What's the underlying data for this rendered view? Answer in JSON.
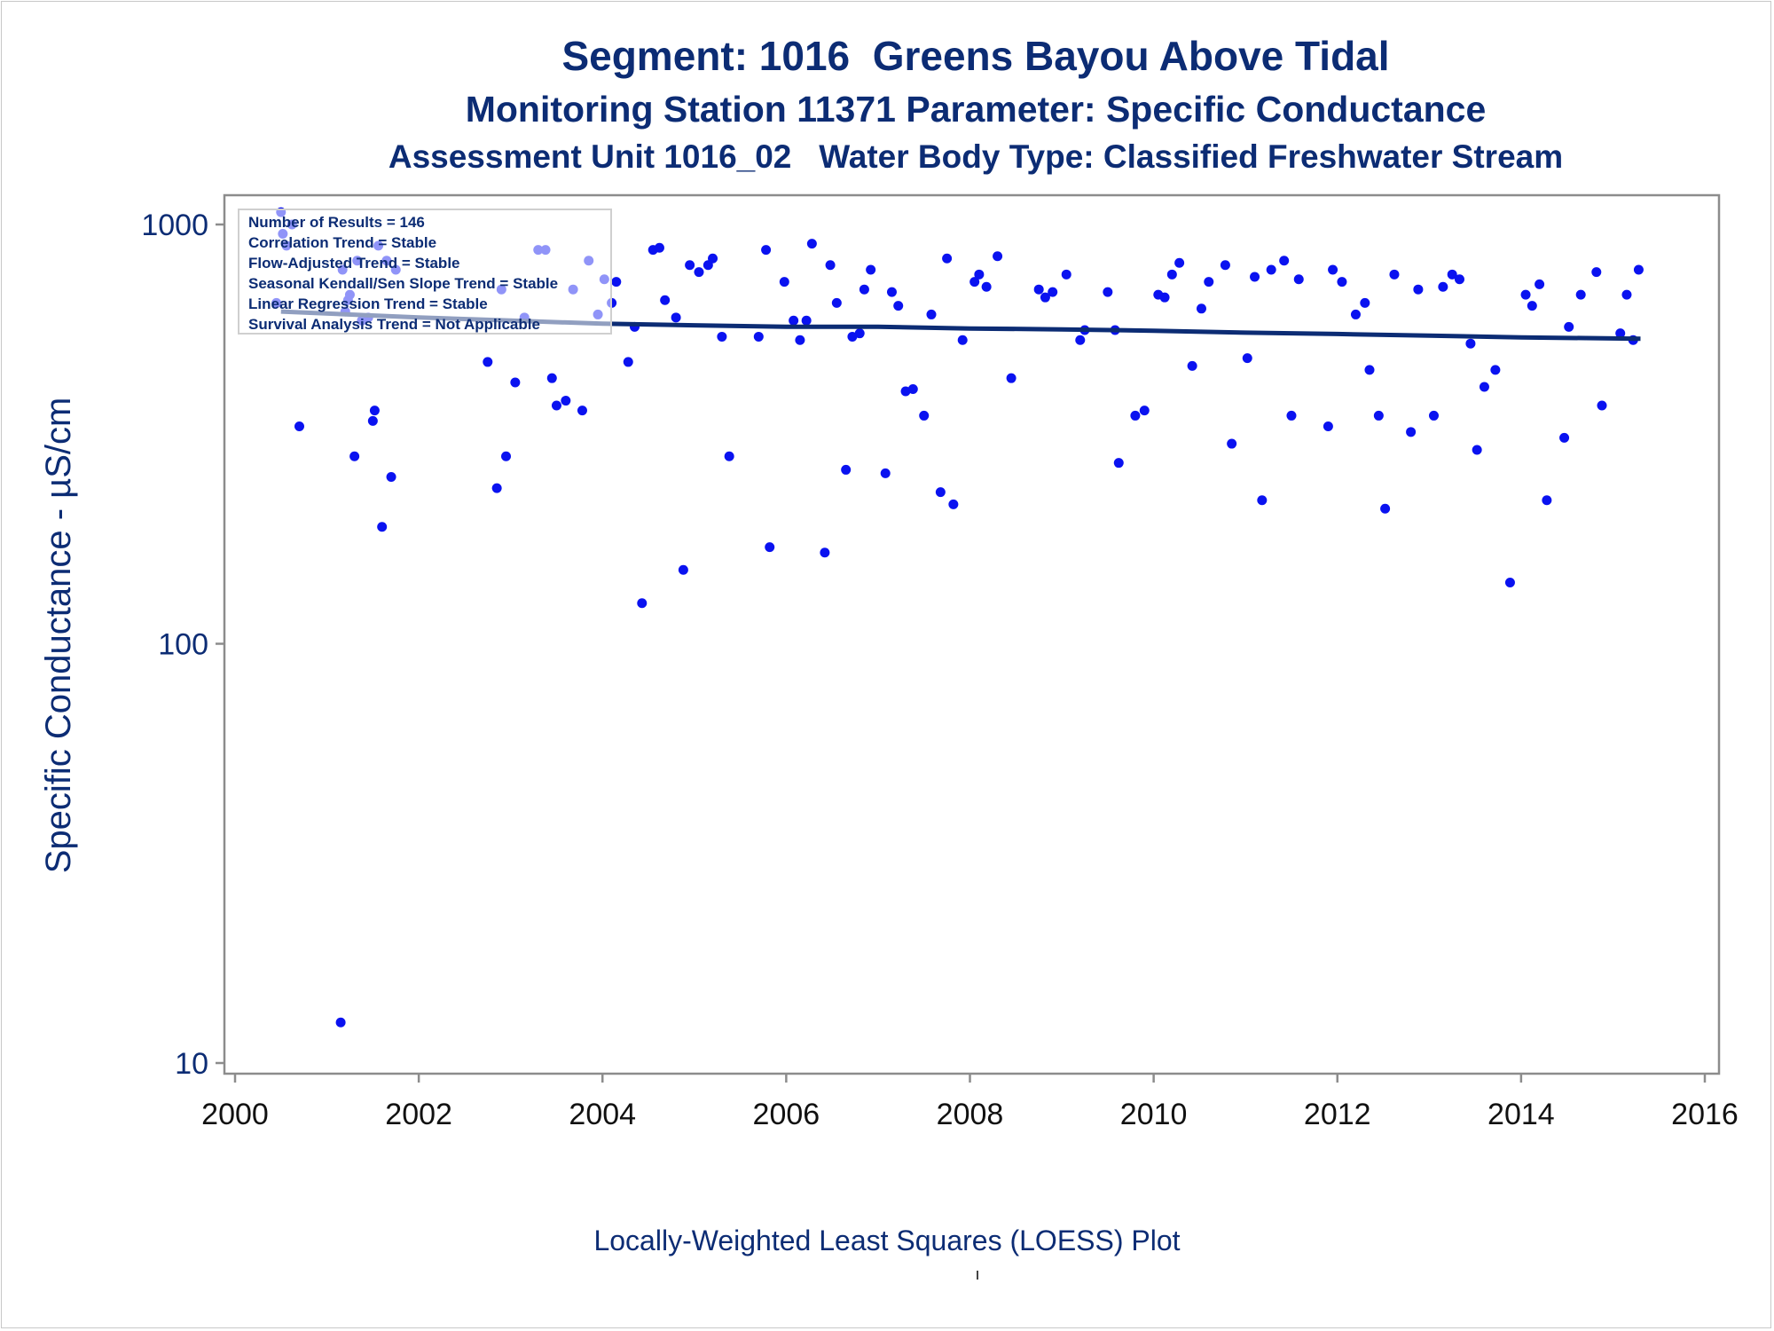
{
  "titles": {
    "line1": "Segment: 1016  Greens Bayou Above Tidal",
    "line2": "Monitoring Station 11371 Parameter: Specific Conductance",
    "line3": "Assessment Unit 1016_02   Water Body Type: Classified Freshwater Stream"
  },
  "legend": {
    "lines": [
      "Number of Results = 146",
      "Correlation Trend = Stable",
      "Flow-Adjusted Trend = Stable",
      "Seasonal Kendall/Sen Slope Trend = Stable",
      "Linear Regression Trend = Stable",
      "Survival Analysis Trend = Not Applicable"
    ]
  },
  "footnote": "Locally-Weighted Least Squares (LOESS) Plot",
  "colors": {
    "points": "#0a12f0",
    "trend": "#0c2c74",
    "axis": "#8c8c8c",
    "text": "#0c2c74"
  },
  "chart_data": {
    "type": "scatter",
    "title": "Segment: 1016  Greens Bayou Above Tidal",
    "ylabel": "Specific Conductance -  µS/cm",
    "xlabel": "",
    "x_ticks": [
      "2000",
      "2002",
      "2004",
      "2006",
      "2008",
      "2010",
      "2012",
      "2014",
      "2016"
    ],
    "y_ticks": [
      "10",
      "100",
      "1000"
    ],
    "xlim": [
      2000,
      2016
    ],
    "ylim": [
      10,
      1000
    ],
    "y_scale": "log",
    "grid": false,
    "legend_position": "top-left",
    "points": [
      [
        2000.45,
        650
      ],
      [
        2000.5,
        1070
      ],
      [
        2000.52,
        950
      ],
      [
        2000.56,
        890
      ],
      [
        2000.62,
        1000
      ],
      [
        2000.7,
        330
      ],
      [
        2001.15,
        12.5
      ],
      [
        2001.17,
        780
      ],
      [
        2001.2,
        620
      ],
      [
        2001.23,
        660
      ],
      [
        2001.25,
        680
      ],
      [
        2001.3,
        280
      ],
      [
        2001.33,
        820
      ],
      [
        2001.38,
        590
      ],
      [
        2001.45,
        600
      ],
      [
        2001.5,
        340
      ],
      [
        2001.52,
        360
      ],
      [
        2001.56,
        890
      ],
      [
        2001.6,
        190
      ],
      [
        2001.65,
        820
      ],
      [
        2001.7,
        250
      ],
      [
        2001.75,
        780
      ],
      [
        2002.75,
        470
      ],
      [
        2002.85,
        235
      ],
      [
        2002.9,
        700
      ],
      [
        2002.95,
        280
      ],
      [
        2003.05,
        420
      ],
      [
        2003.15,
        600
      ],
      [
        2003.3,
        870
      ],
      [
        2003.38,
        870
      ],
      [
        2003.45,
        430
      ],
      [
        2003.5,
        370
      ],
      [
        2003.6,
        380
      ],
      [
        2003.68,
        700
      ],
      [
        2003.78,
        360
      ],
      [
        2003.85,
        820
      ],
      [
        2003.95,
        610
      ],
      [
        2004.02,
        740
      ],
      [
        2004.1,
        650
      ],
      [
        2004.15,
        730
      ],
      [
        2004.28,
        470
      ],
      [
        2004.35,
        570
      ],
      [
        2004.43,
        125
      ],
      [
        2004.55,
        870
      ],
      [
        2004.62,
        880
      ],
      [
        2004.68,
        660
      ],
      [
        2004.8,
        600
      ],
      [
        2004.88,
        150
      ],
      [
        2004.95,
        800
      ],
      [
        2005.05,
        770
      ],
      [
        2005.15,
        800
      ],
      [
        2005.2,
        830
      ],
      [
        2005.3,
        540
      ],
      [
        2005.38,
        280
      ],
      [
        2005.7,
        540
      ],
      [
        2005.78,
        870
      ],
      [
        2005.82,
        170
      ],
      [
        2005.98,
        730
      ],
      [
        2006.08,
        590
      ],
      [
        2006.15,
        530
      ],
      [
        2006.22,
        590
      ],
      [
        2006.28,
        900
      ],
      [
        2006.42,
        165
      ],
      [
        2006.48,
        800
      ],
      [
        2006.55,
        650
      ],
      [
        2006.65,
        260
      ],
      [
        2006.72,
        540
      ],
      [
        2006.8,
        550
      ],
      [
        2006.85,
        700
      ],
      [
        2006.92,
        780
      ],
      [
        2007.08,
        255
      ],
      [
        2007.15,
        690
      ],
      [
        2007.22,
        640
      ],
      [
        2007.3,
        400
      ],
      [
        2007.38,
        405
      ],
      [
        2007.5,
        350
      ],
      [
        2007.58,
        610
      ],
      [
        2007.68,
        230
      ],
      [
        2007.75,
        830
      ],
      [
        2007.82,
        215
      ],
      [
        2007.92,
        530
      ],
      [
        2008.05,
        730
      ],
      [
        2008.1,
        760
      ],
      [
        2008.18,
        710
      ],
      [
        2008.3,
        840
      ],
      [
        2008.45,
        430
      ],
      [
        2008.75,
        700
      ],
      [
        2008.82,
        670
      ],
      [
        2008.9,
        690
      ],
      [
        2009.05,
        760
      ],
      [
        2009.2,
        530
      ],
      [
        2009.25,
        560
      ],
      [
        2009.5,
        690
      ],
      [
        2009.58,
        560
      ],
      [
        2009.62,
        270
      ],
      [
        2009.8,
        350
      ],
      [
        2009.9,
        360
      ],
      [
        2010.05,
        680
      ],
      [
        2010.12,
        670
      ],
      [
        2010.2,
        760
      ],
      [
        2010.28,
        810
      ],
      [
        2010.42,
        460
      ],
      [
        2010.52,
        630
      ],
      [
        2010.6,
        730
      ],
      [
        2010.78,
        800
      ],
      [
        2010.85,
        300
      ],
      [
        2011.02,
        480
      ],
      [
        2011.1,
        750
      ],
      [
        2011.18,
        220
      ],
      [
        2011.28,
        780
      ],
      [
        2011.42,
        820
      ],
      [
        2011.5,
        350
      ],
      [
        2011.58,
        740
      ],
      [
        2011.9,
        330
      ],
      [
        2011.95,
        780
      ],
      [
        2012.05,
        730
      ],
      [
        2012.2,
        610
      ],
      [
        2012.3,
        650
      ],
      [
        2012.35,
        450
      ],
      [
        2012.45,
        350
      ],
      [
        2012.52,
        210
      ],
      [
        2012.62,
        760
      ],
      [
        2012.8,
        320
      ],
      [
        2012.88,
        700
      ],
      [
        2013.05,
        350
      ],
      [
        2013.15,
        710
      ],
      [
        2013.25,
        760
      ],
      [
        2013.33,
        740
      ],
      [
        2013.45,
        520
      ],
      [
        2013.52,
        290
      ],
      [
        2013.6,
        410
      ],
      [
        2013.72,
        450
      ],
      [
        2013.88,
        140
      ],
      [
        2014.05,
        680
      ],
      [
        2014.12,
        640
      ],
      [
        2014.2,
        720
      ],
      [
        2014.28,
        220
      ],
      [
        2014.47,
        310
      ],
      [
        2014.52,
        570
      ],
      [
        2014.65,
        680
      ],
      [
        2014.82,
        770
      ],
      [
        2014.88,
        370
      ],
      [
        2015.08,
        550
      ],
      [
        2015.15,
        680
      ],
      [
        2015.22,
        530
      ],
      [
        2015.28,
        780
      ]
    ],
    "trend_line": [
      [
        2000.5,
        620
      ],
      [
        2002,
        600
      ],
      [
        2003,
        590
      ],
      [
        2004,
        580
      ],
      [
        2005,
        575
      ],
      [
        2006,
        570
      ],
      [
        2007,
        570
      ],
      [
        2008,
        565
      ],
      [
        2009,
        562
      ],
      [
        2010,
        558
      ],
      [
        2011,
        552
      ],
      [
        2012,
        548
      ],
      [
        2013,
        543
      ],
      [
        2014,
        538
      ],
      [
        2015,
        535
      ],
      [
        2015.3,
        534
      ]
    ]
  }
}
